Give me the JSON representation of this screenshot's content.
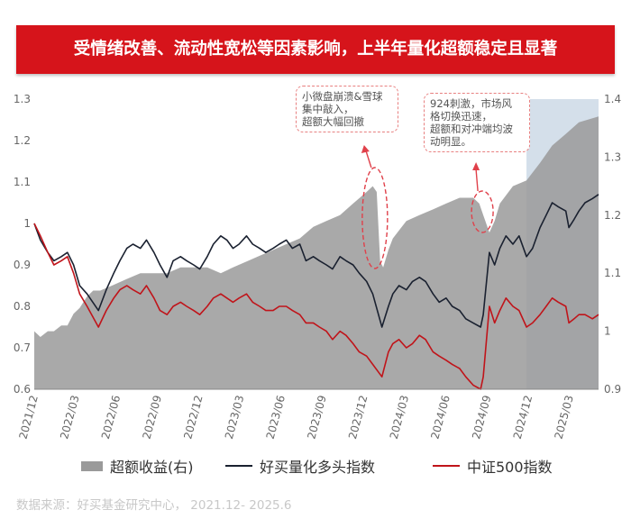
{
  "title": "受情绪改善、流动性宽松等因素影响，上半年量化超额稳定且显著",
  "source": "数据来源：好买基金研究中心，  2021.12- 2025.6",
  "annotations": [
    {
      "text": "小微盘崩溃&雪球\n集中敲入，\n超额大幅回撤",
      "date": "2024-01-24"
    },
    {
      "text": "924刺激，市场风\n格切换迅速，\n超额和对冲端均波\n动明显。",
      "date": "2024-09-24"
    }
  ],
  "colors": {
    "area": "#9a9a9a",
    "haoMai": "#1a2130",
    "csi500": "#c0141a",
    "highlight": "#9fb8d1",
    "banner": "#d6141b"
  },
  "chart_data": {
    "type": "line",
    "title": "受情绪改善、流动性宽松等因素影响，上半年量化超额稳定且显著",
    "x_ticks": [
      "2021/12",
      "2022/03",
      "2022/06",
      "2022/09",
      "2022/12",
      "2023/03",
      "2023/06",
      "2023/09",
      "2023/12",
      "2024/03",
      "2024/06",
      "2024/09",
      "2024/12",
      "2025/03"
    ],
    "x_range": [
      "2021-12-01",
      "2025-06-15"
    ],
    "y_left": {
      "range": [
        0.6,
        1.3
      ],
      "ticks": [
        0.6,
        0.7,
        0.8,
        0.9,
        1.0,
        1.1,
        1.2,
        1.3
      ],
      "tick_labels": [
        "0.6",
        "0.7",
        "0.8",
        "0.9",
        "1",
        "1.1",
        "1.2",
        "1.3"
      ]
    },
    "y_right": {
      "range": [
        0.9,
        1.4
      ],
      "ticks": [
        0.9,
        1.0,
        1.1,
        1.2,
        1.3,
        1.4
      ],
      "tick_labels": [
        "0.9",
        "1",
        "1.1",
        "1.2",
        "1.3",
        "1.4"
      ]
    },
    "highlight_region": [
      "2025-01-01",
      "2025-06-15"
    ],
    "legend_position": "bottom",
    "series": [
      {
        "name": "超额收益(右)",
        "kind": "area",
        "axis": "right",
        "points": [
          [
            "2021-12-01",
            1.0
          ],
          [
            "2021-12-15",
            0.99
          ],
          [
            "2022-01-01",
            1.0
          ],
          [
            "2022-01-15",
            1.0
          ],
          [
            "2022-02-01",
            1.01
          ],
          [
            "2022-02-15",
            1.01
          ],
          [
            "2022-03-01",
            1.03
          ],
          [
            "2022-03-15",
            1.04
          ],
          [
            "2022-04-01",
            1.06
          ],
          [
            "2022-04-15",
            1.07
          ],
          [
            "2022-05-01",
            1.07
          ],
          [
            "2022-06-01",
            1.08
          ],
          [
            "2022-07-01",
            1.09
          ],
          [
            "2022-08-01",
            1.1
          ],
          [
            "2022-09-01",
            1.1
          ],
          [
            "2022-10-01",
            1.1
          ],
          [
            "2022-11-01",
            1.11
          ],
          [
            "2022-12-01",
            1.11
          ],
          [
            "2023-01-01",
            1.11
          ],
          [
            "2023-02-01",
            1.1
          ],
          [
            "2023-03-01",
            1.11
          ],
          [
            "2023-04-01",
            1.12
          ],
          [
            "2023-05-01",
            1.13
          ],
          [
            "2023-06-01",
            1.14
          ],
          [
            "2023-07-01",
            1.15
          ],
          [
            "2023-08-01",
            1.16
          ],
          [
            "2023-09-01",
            1.18
          ],
          [
            "2023-10-01",
            1.19
          ],
          [
            "2023-11-01",
            1.2
          ],
          [
            "2023-12-01",
            1.22
          ],
          [
            "2024-01-01",
            1.24
          ],
          [
            "2024-01-15",
            1.25
          ],
          [
            "2024-01-24",
            1.24
          ],
          [
            "2024-02-01",
            1.12
          ],
          [
            "2024-02-08",
            1.11
          ],
          [
            "2024-02-20",
            1.14
          ],
          [
            "2024-03-01",
            1.16
          ],
          [
            "2024-04-01",
            1.19
          ],
          [
            "2024-05-01",
            1.2
          ],
          [
            "2024-06-01",
            1.21
          ],
          [
            "2024-07-01",
            1.22
          ],
          [
            "2024-08-01",
            1.23
          ],
          [
            "2024-09-01",
            1.23
          ],
          [
            "2024-09-15",
            1.22
          ],
          [
            "2024-09-24",
            1.2
          ],
          [
            "2024-10-08",
            1.17
          ],
          [
            "2024-10-20",
            1.19
          ],
          [
            "2024-11-01",
            1.22
          ],
          [
            "2024-12-01",
            1.25
          ],
          [
            "2025-01-01",
            1.26
          ],
          [
            "2025-02-01",
            1.29
          ],
          [
            "2025-03-01",
            1.32
          ],
          [
            "2025-04-01",
            1.34
          ],
          [
            "2025-05-01",
            1.36
          ],
          [
            "2025-06-15",
            1.37
          ]
        ]
      },
      {
        "name": "好买量化多头指数",
        "kind": "line",
        "axis": "left",
        "points": [
          [
            "2021-12-01",
            1.0
          ],
          [
            "2021-12-15",
            0.96
          ],
          [
            "2022-01-01",
            0.93
          ],
          [
            "2022-01-15",
            0.91
          ],
          [
            "2022-02-01",
            0.92
          ],
          [
            "2022-02-15",
            0.93
          ],
          [
            "2022-03-01",
            0.9
          ],
          [
            "2022-03-15",
            0.85
          ],
          [
            "2022-04-01",
            0.83
          ],
          [
            "2022-04-27",
            0.79
          ],
          [
            "2022-05-15",
            0.84
          ],
          [
            "2022-06-01",
            0.88
          ],
          [
            "2022-06-15",
            0.91
          ],
          [
            "2022-07-01",
            0.94
          ],
          [
            "2022-07-15",
            0.95
          ],
          [
            "2022-08-01",
            0.94
          ],
          [
            "2022-08-15",
            0.96
          ],
          [
            "2022-09-01",
            0.93
          ],
          [
            "2022-09-15",
            0.9
          ],
          [
            "2022-10-01",
            0.87
          ],
          [
            "2022-10-15",
            0.91
          ],
          [
            "2022-11-01",
            0.92
          ],
          [
            "2022-11-15",
            0.91
          ],
          [
            "2022-12-01",
            0.9
          ],
          [
            "2022-12-15",
            0.89
          ],
          [
            "2023-01-01",
            0.92
          ],
          [
            "2023-01-15",
            0.95
          ],
          [
            "2023-02-01",
            0.97
          ],
          [
            "2023-02-15",
            0.96
          ],
          [
            "2023-03-01",
            0.94
          ],
          [
            "2023-03-15",
            0.95
          ],
          [
            "2023-04-01",
            0.97
          ],
          [
            "2023-04-15",
            0.95
          ],
          [
            "2023-05-01",
            0.94
          ],
          [
            "2023-05-15",
            0.93
          ],
          [
            "2023-06-01",
            0.94
          ],
          [
            "2023-06-15",
            0.95
          ],
          [
            "2023-07-01",
            0.96
          ],
          [
            "2023-07-15",
            0.94
          ],
          [
            "2023-08-01",
            0.95
          ],
          [
            "2023-08-15",
            0.91
          ],
          [
            "2023-09-01",
            0.92
          ],
          [
            "2023-09-15",
            0.91
          ],
          [
            "2023-10-01",
            0.9
          ],
          [
            "2023-10-15",
            0.89
          ],
          [
            "2023-11-01",
            0.92
          ],
          [
            "2023-11-15",
            0.91
          ],
          [
            "2023-12-01",
            0.9
          ],
          [
            "2023-12-15",
            0.88
          ],
          [
            "2024-01-01",
            0.86
          ],
          [
            "2024-01-15",
            0.83
          ],
          [
            "2024-02-05",
            0.75
          ],
          [
            "2024-02-20",
            0.8
          ],
          [
            "2024-03-01",
            0.83
          ],
          [
            "2024-03-15",
            0.85
          ],
          [
            "2024-04-01",
            0.84
          ],
          [
            "2024-04-15",
            0.86
          ],
          [
            "2024-05-01",
            0.87
          ],
          [
            "2024-05-15",
            0.86
          ],
          [
            "2024-06-01",
            0.83
          ],
          [
            "2024-06-15",
            0.81
          ],
          [
            "2024-07-01",
            0.82
          ],
          [
            "2024-07-15",
            0.8
          ],
          [
            "2024-08-01",
            0.79
          ],
          [
            "2024-08-15",
            0.77
          ],
          [
            "2024-09-01",
            0.76
          ],
          [
            "2024-09-18",
            0.75
          ],
          [
            "2024-09-24",
            0.78
          ],
          [
            "2024-10-08",
            0.93
          ],
          [
            "2024-10-20",
            0.9
          ],
          [
            "2024-11-01",
            0.94
          ],
          [
            "2024-11-15",
            0.97
          ],
          [
            "2024-12-01",
            0.95
          ],
          [
            "2024-12-15",
            0.97
          ],
          [
            "2025-01-01",
            0.92
          ],
          [
            "2025-01-15",
            0.94
          ],
          [
            "2025-02-01",
            0.99
          ],
          [
            "2025-02-15",
            1.02
          ],
          [
            "2025-03-01",
            1.05
          ],
          [
            "2025-03-15",
            1.04
          ],
          [
            "2025-04-01",
            1.03
          ],
          [
            "2025-04-08",
            0.99
          ],
          [
            "2025-04-20",
            1.01
          ],
          [
            "2025-05-01",
            1.03
          ],
          [
            "2025-05-15",
            1.05
          ],
          [
            "2025-06-01",
            1.06
          ],
          [
            "2025-06-15",
            1.07
          ]
        ]
      },
      {
        "name": "中证500指数",
        "kind": "line",
        "axis": "left",
        "points": [
          [
            "2021-12-01",
            1.0
          ],
          [
            "2021-12-15",
            0.97
          ],
          [
            "2022-01-01",
            0.93
          ],
          [
            "2022-01-15",
            0.9
          ],
          [
            "2022-02-01",
            0.91
          ],
          [
            "2022-02-15",
            0.92
          ],
          [
            "2022-03-01",
            0.88
          ],
          [
            "2022-03-15",
            0.83
          ],
          [
            "2022-04-01",
            0.8
          ],
          [
            "2022-04-27",
            0.75
          ],
          [
            "2022-05-15",
            0.79
          ],
          [
            "2022-06-01",
            0.82
          ],
          [
            "2022-06-15",
            0.84
          ],
          [
            "2022-07-01",
            0.85
          ],
          [
            "2022-07-15",
            0.84
          ],
          [
            "2022-08-01",
            0.83
          ],
          [
            "2022-08-15",
            0.85
          ],
          [
            "2022-09-01",
            0.82
          ],
          [
            "2022-09-15",
            0.79
          ],
          [
            "2022-10-01",
            0.78
          ],
          [
            "2022-10-15",
            0.8
          ],
          [
            "2022-11-01",
            0.81
          ],
          [
            "2022-11-15",
            0.8
          ],
          [
            "2022-12-01",
            0.79
          ],
          [
            "2022-12-15",
            0.78
          ],
          [
            "2023-01-01",
            0.8
          ],
          [
            "2023-01-15",
            0.82
          ],
          [
            "2023-02-01",
            0.83
          ],
          [
            "2023-02-15",
            0.82
          ],
          [
            "2023-03-01",
            0.81
          ],
          [
            "2023-03-15",
            0.82
          ],
          [
            "2023-04-01",
            0.83
          ],
          [
            "2023-04-15",
            0.81
          ],
          [
            "2023-05-01",
            0.8
          ],
          [
            "2023-05-15",
            0.79
          ],
          [
            "2023-06-01",
            0.79
          ],
          [
            "2023-06-15",
            0.8
          ],
          [
            "2023-07-01",
            0.8
          ],
          [
            "2023-07-15",
            0.79
          ],
          [
            "2023-08-01",
            0.78
          ],
          [
            "2023-08-15",
            0.76
          ],
          [
            "2023-09-01",
            0.76
          ],
          [
            "2023-09-15",
            0.75
          ],
          [
            "2023-10-01",
            0.74
          ],
          [
            "2023-10-15",
            0.72
          ],
          [
            "2023-11-01",
            0.74
          ],
          [
            "2023-11-15",
            0.73
          ],
          [
            "2023-12-01",
            0.71
          ],
          [
            "2023-12-15",
            0.69
          ],
          [
            "2024-01-01",
            0.68
          ],
          [
            "2024-01-15",
            0.66
          ],
          [
            "2024-02-05",
            0.63
          ],
          [
            "2024-02-20",
            0.69
          ],
          [
            "2024-03-01",
            0.71
          ],
          [
            "2024-03-15",
            0.72
          ],
          [
            "2024-04-01",
            0.7
          ],
          [
            "2024-04-15",
            0.71
          ],
          [
            "2024-05-01",
            0.73
          ],
          [
            "2024-05-15",
            0.72
          ],
          [
            "2024-06-01",
            0.69
          ],
          [
            "2024-06-15",
            0.68
          ],
          [
            "2024-07-01",
            0.67
          ],
          [
            "2024-07-15",
            0.66
          ],
          [
            "2024-08-01",
            0.65
          ],
          [
            "2024-08-15",
            0.63
          ],
          [
            "2024-09-01",
            0.61
          ],
          [
            "2024-09-18",
            0.6
          ],
          [
            "2024-09-24",
            0.63
          ],
          [
            "2024-10-08",
            0.8
          ],
          [
            "2024-10-20",
            0.76
          ],
          [
            "2024-11-01",
            0.79
          ],
          [
            "2024-11-15",
            0.82
          ],
          [
            "2024-12-01",
            0.8
          ],
          [
            "2024-12-15",
            0.79
          ],
          [
            "2025-01-01",
            0.75
          ],
          [
            "2025-01-15",
            0.76
          ],
          [
            "2025-02-01",
            0.78
          ],
          [
            "2025-02-15",
            0.8
          ],
          [
            "2025-03-01",
            0.82
          ],
          [
            "2025-03-15",
            0.81
          ],
          [
            "2025-04-01",
            0.8
          ],
          [
            "2025-04-08",
            0.76
          ],
          [
            "2025-04-20",
            0.77
          ],
          [
            "2025-05-01",
            0.78
          ],
          [
            "2025-05-15",
            0.78
          ],
          [
            "2025-06-01",
            0.77
          ],
          [
            "2025-06-15",
            0.78
          ]
        ]
      }
    ]
  }
}
